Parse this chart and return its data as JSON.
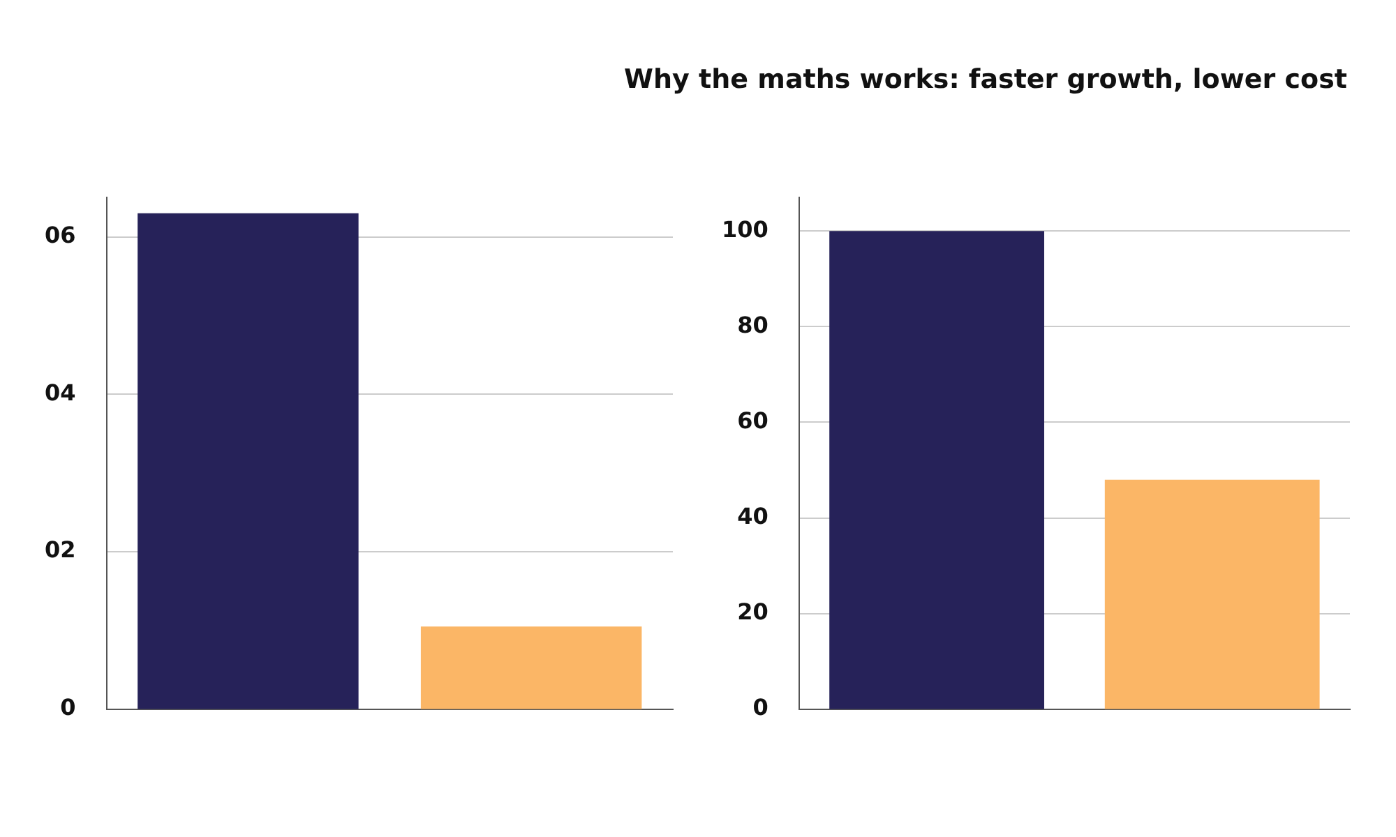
{
  "chart_data": [
    {
      "type": "bar",
      "categories": [
        null,
        null
      ],
      "colors": [
        "#262259",
        "#fbb666"
      ],
      "values": [
        6.3,
        1.05
      ],
      "ylim": [
        0,
        6.5
      ],
      "yticks": [
        0,
        {
          "value": 2,
          "label": "02"
        },
        {
          "value": 4,
          "label": "04"
        },
        {
          "value": 6,
          "label": "06"
        }
      ],
      "grid": "y"
    },
    {
      "type": "bar",
      "title": "Why the maths works: faster growth, lower cost",
      "categories": [
        null,
        null
      ],
      "colors": [
        "#262259",
        "#fbb666"
      ],
      "values": [
        100,
        48
      ],
      "ylim": [
        0,
        107
      ],
      "yticks": [
        0,
        20,
        40,
        60,
        80,
        100
      ],
      "grid": "y"
    }
  ]
}
